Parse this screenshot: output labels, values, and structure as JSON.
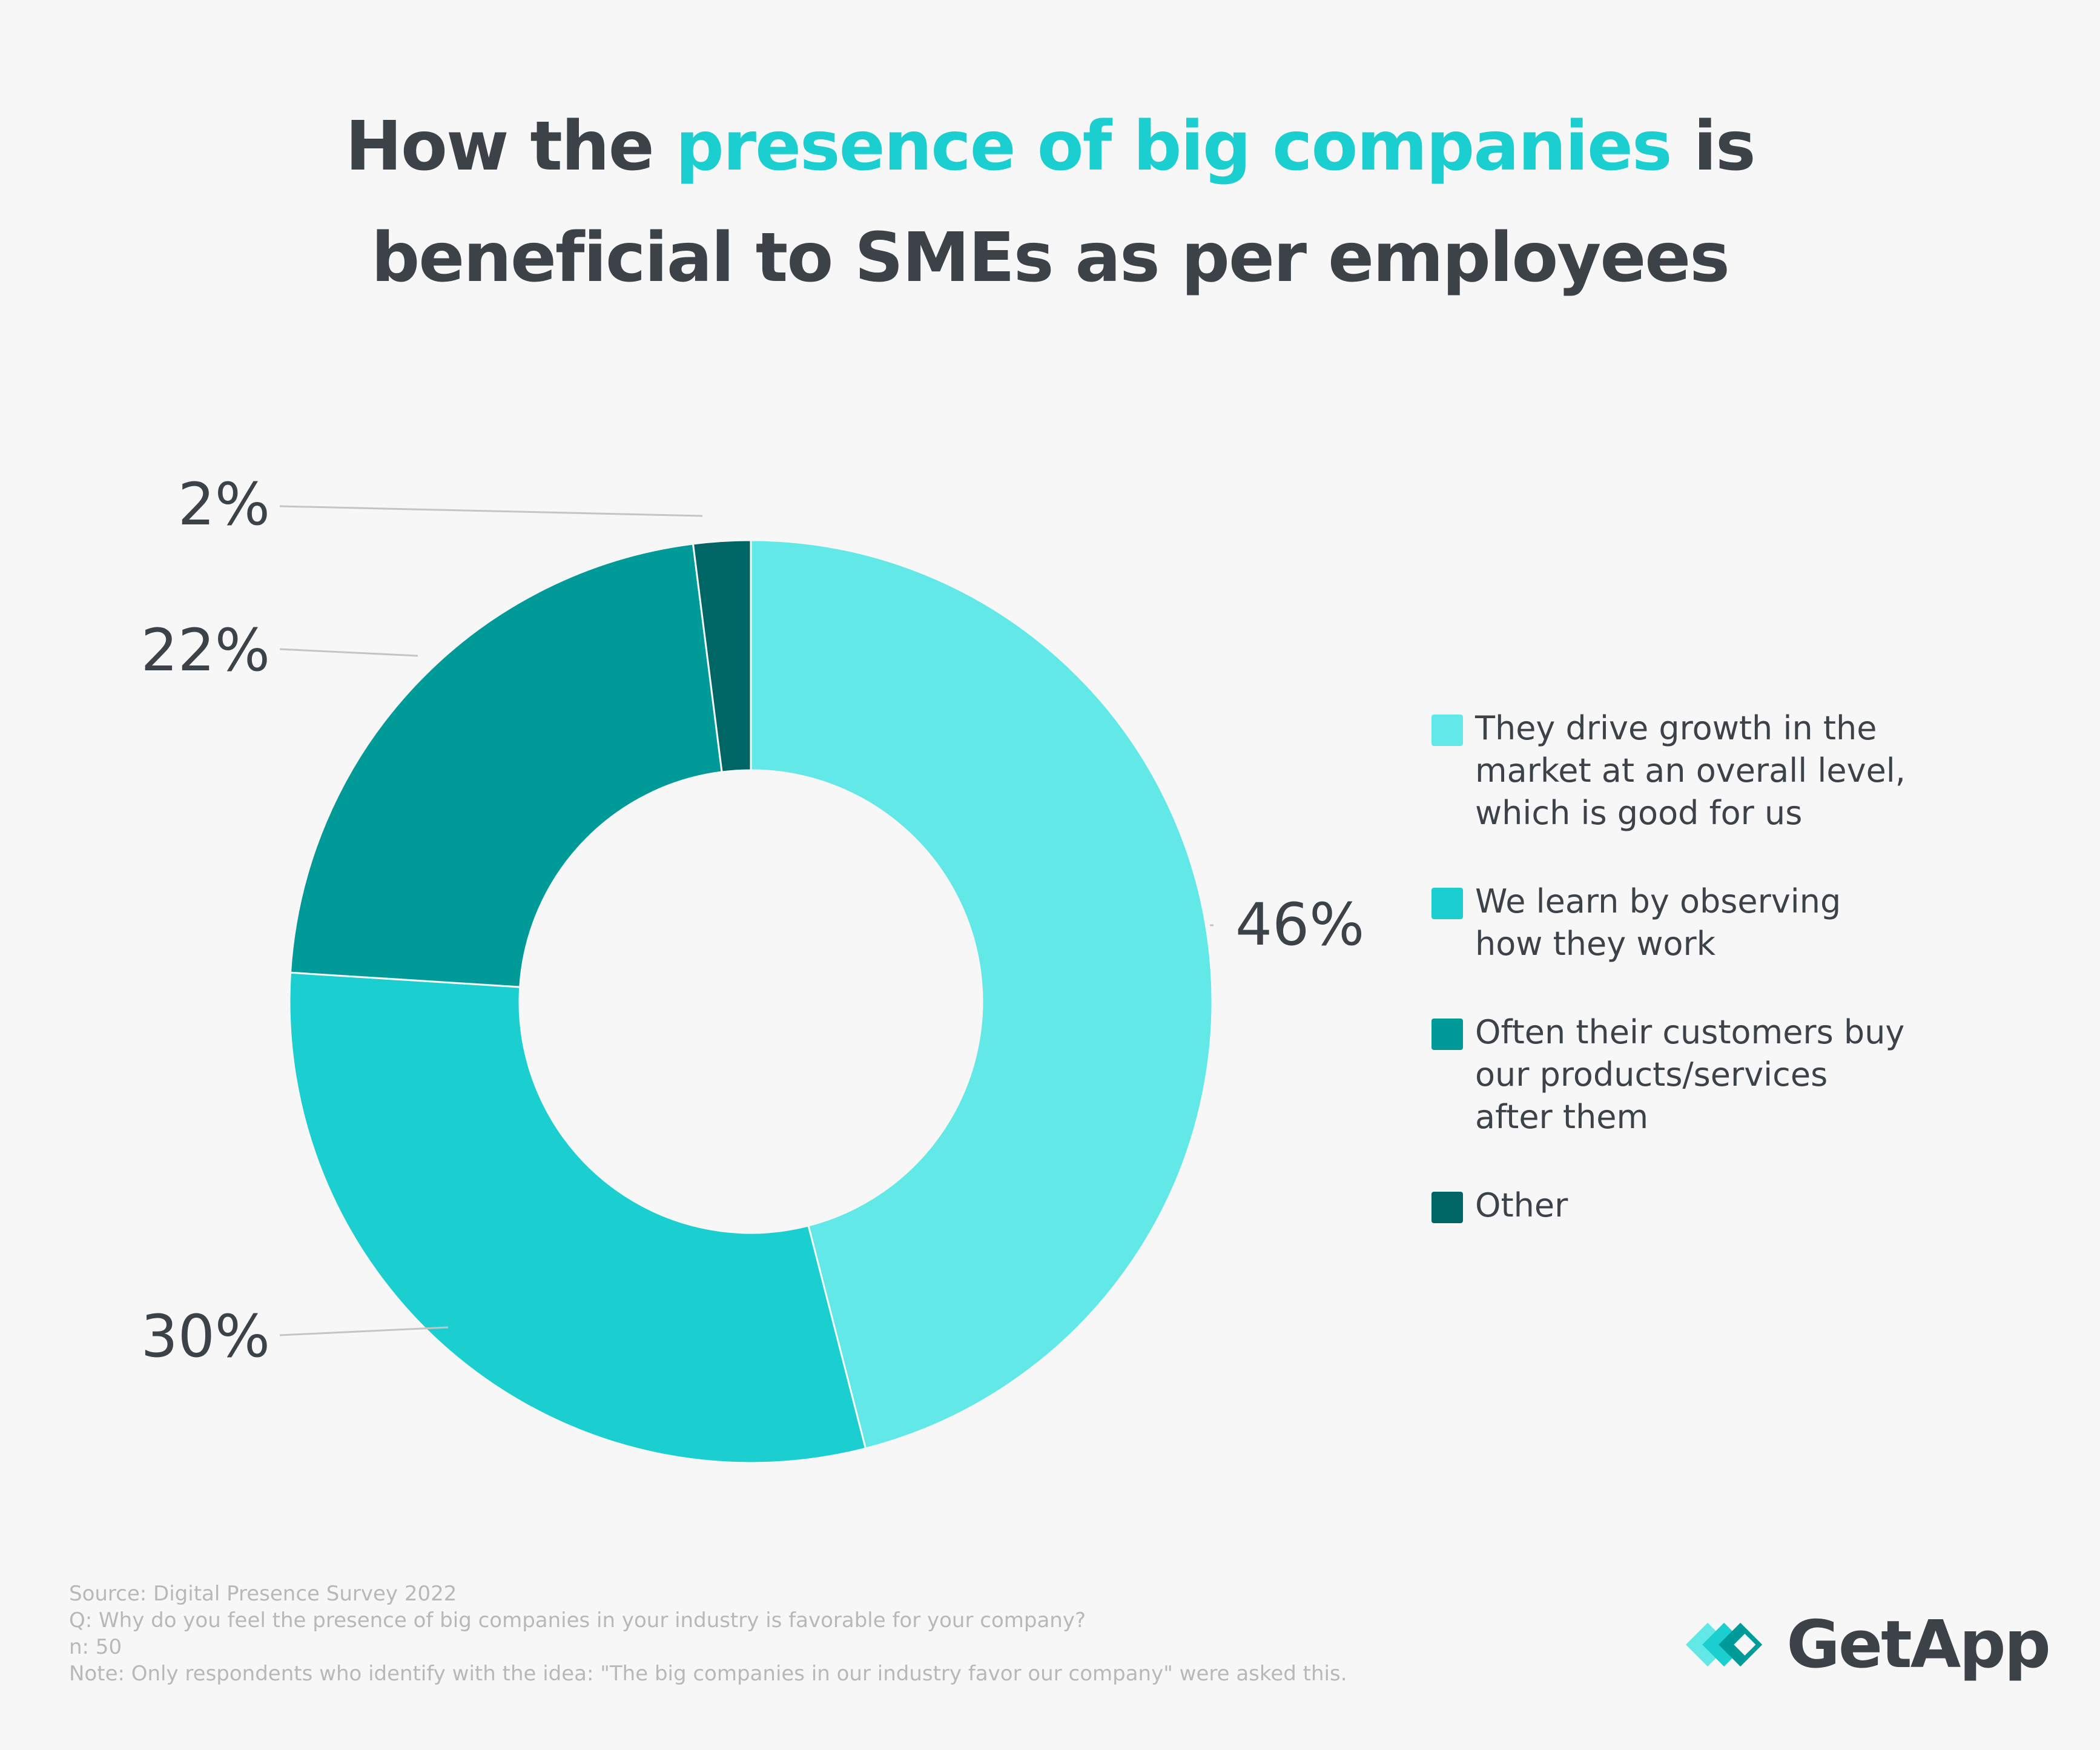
{
  "title": {
    "part1": "How the ",
    "accent": "presence of big companies",
    "part2": " is",
    "line2": "beneficial to SMEs as per employees"
  },
  "chart_data": {
    "type": "pie",
    "donut": true,
    "slices": [
      {
        "label": "They drive growth in the market at an overall level, which is good for us",
        "value": 46,
        "display": "46%",
        "color": "#63e8e8"
      },
      {
        "label": "We learn by observing how they work",
        "value": 30,
        "display": "30%",
        "color": "#1bcfd0"
      },
      {
        "label": "Often their customers buy our products/services after them",
        "value": 22,
        "display": "22%",
        "color": "#009b99"
      },
      {
        "label": "Other",
        "value": 2,
        "display": "2%",
        "color": "#006665"
      }
    ],
    "legend_position": "right"
  },
  "legend": [
    {
      "lines": [
        "They drive growth in the",
        "market at an overall level,",
        "which is good for us"
      ],
      "color": "#63e8e8"
    },
    {
      "lines": [
        "We learn by observing",
        "how they work"
      ],
      "color": "#1bcfd0"
    },
    {
      "lines": [
        "Often their customers buy",
        "our products/services",
        "after them"
      ],
      "color": "#009b99"
    },
    {
      "lines": [
        "Other"
      ],
      "color": "#006665"
    }
  ],
  "notes": [
    "Source: Digital Presence Survey 2022",
    "Q: Why do you feel the presence of big companies in your industry is favorable for your company?",
    "n: 50",
    "Note: Only respondents who identify with the idea: \"The big companies in our industry favor our company\" were asked this."
  ],
  "brand": {
    "name": "GetApp",
    "icon": "getapp-logo-icon",
    "colors": [
      "#63e8e8",
      "#1bcfd0",
      "#009b99"
    ]
  }
}
